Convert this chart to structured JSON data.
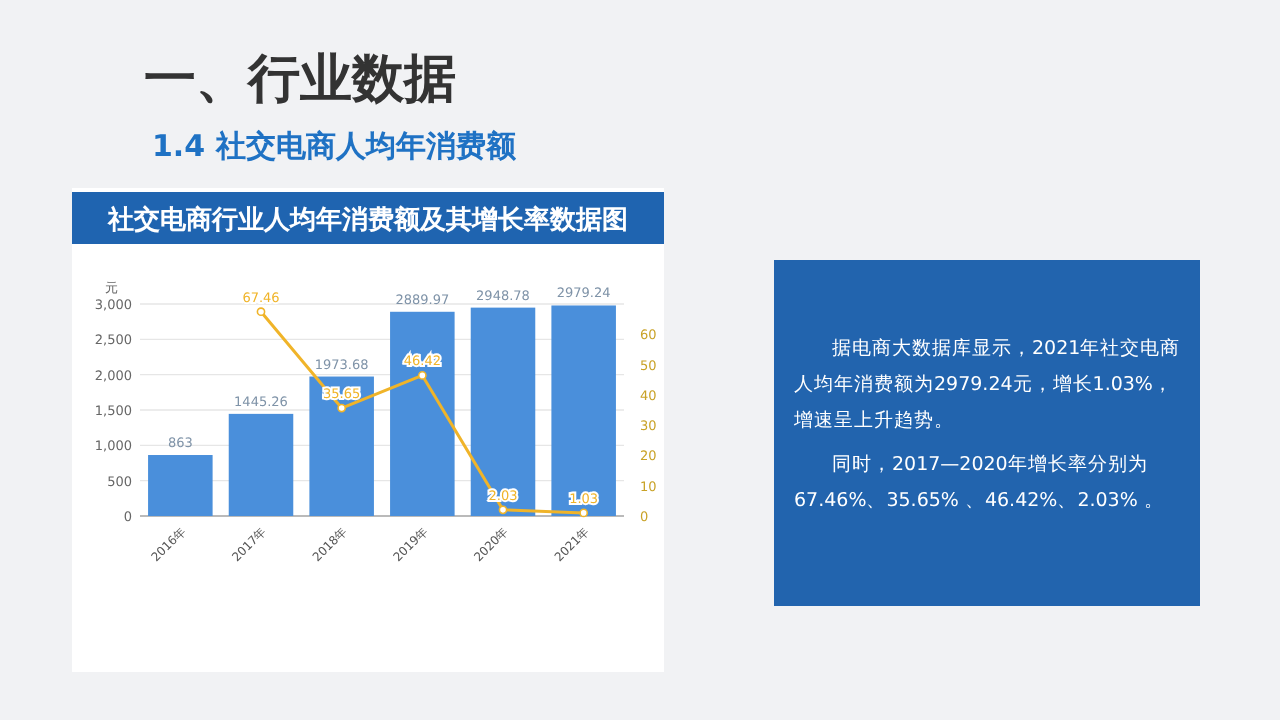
{
  "chart_data": {
    "type": "bar",
    "title": "社交电商行业人均年消费额及其增长率数据图",
    "ylabel": "元",
    "annotations": [
      "一、行业数据",
      "1.4 社交电商人均年消费额",
      "据电商大数据库显示，2021年社交电商人均年消费额为2979.24元，增长1.03%，增速呈上升趋势。",
      "同时，2017—2020年增长率分别为67.46%、35.65% 、46.42%、2.03% 。"
    ],
    "categories": [
      "2016年",
      "2017年",
      "2018年",
      "2019年",
      "2020年",
      "2021年"
    ],
    "series": [
      {
        "color": "#4a8fdb",
        "values": [
          863,
          1445.26,
          1973.68,
          2889.97,
          2948.78,
          2979.24
        ]
      },
      {
        "type": "line",
        "axis": "y2",
        "color": "#f0b429",
        "values": [
          null,
          67.46,
          35.65,
          46.42,
          2.03,
          1.03
        ]
      }
    ],
    "ylim": [
      0,
      3000
    ],
    "yticks": [
      0,
      {
        "value": 500,
        "label": "500"
      },
      {
        "value": 1000,
        "label": "1,000"
      },
      {
        "value": 1500,
        "label": "1,500"
      },
      {
        "value": 2000,
        "label": "2,000"
      },
      {
        "value": 2500,
        "label": "2,500"
      },
      {
        "value": 3000,
        "label": "3,000"
      }
    ],
    "y2lim": [
      0,
      70
    ],
    "y2ticks": [
      0,
      10,
      20,
      30,
      40,
      50,
      60
    ],
    "grid": "y",
    "marker": "circle",
    "line_style": "solid",
    "data_labels": true
  }
}
